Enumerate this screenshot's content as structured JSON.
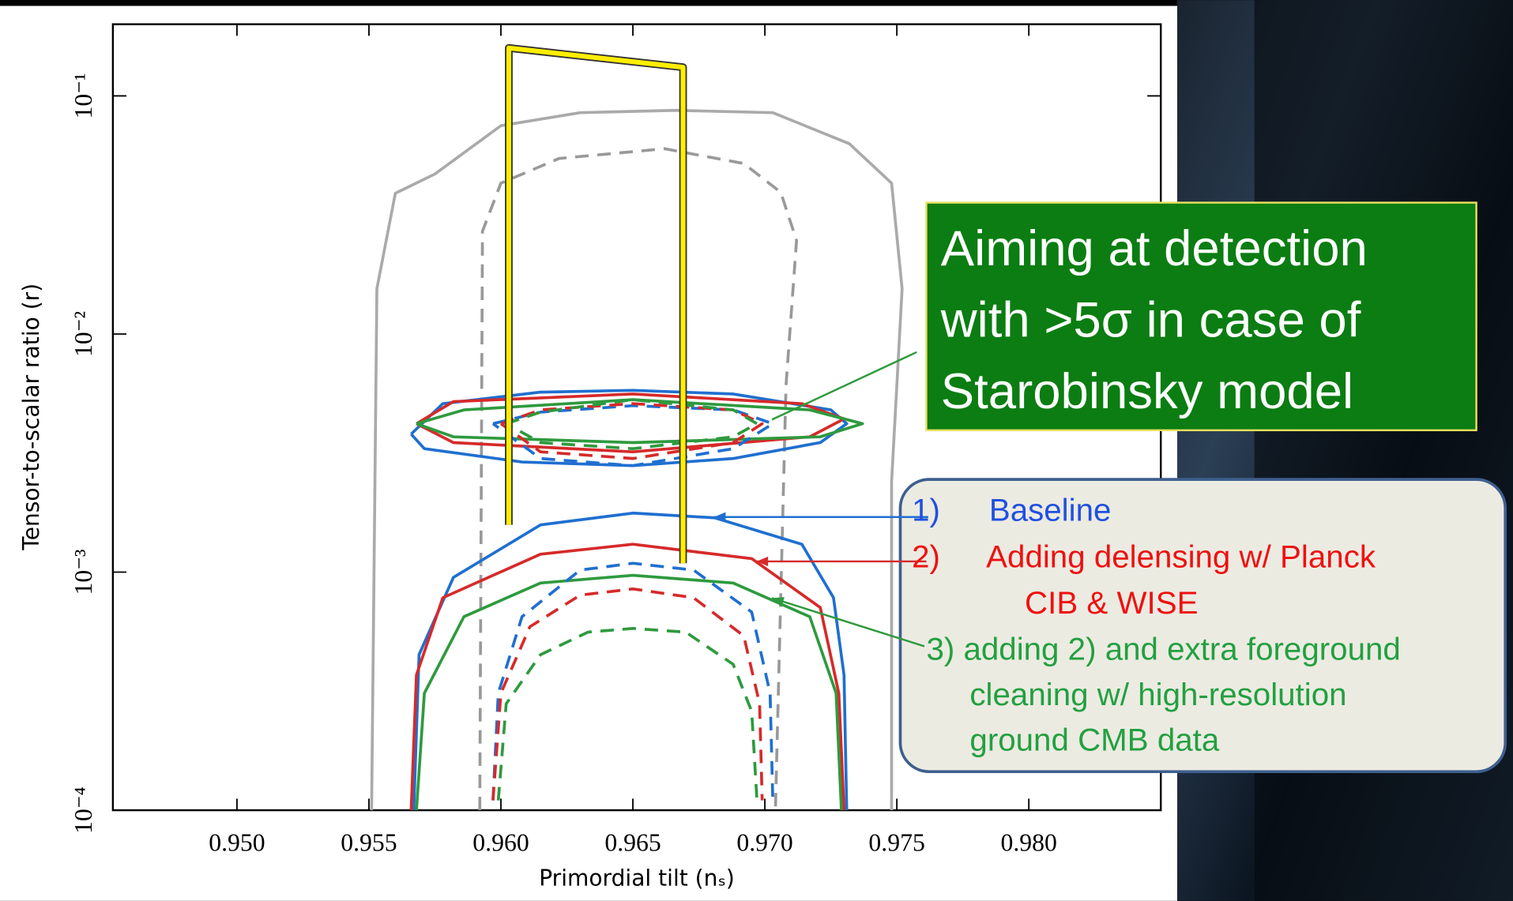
{
  "chart_data": {
    "type": "line",
    "xlabel": "Primordial tilt (nₛ)",
    "ylabel": "Tensor-to-scalar ratio (r)",
    "xlim": [
      0.9453,
      0.985
    ],
    "ylim": [
      0.0001,
      0.2
    ],
    "yscale": "log",
    "xticks": [
      {
        "value": 0.95,
        "label": "0.950"
      },
      {
        "value": 0.955,
        "label": "0.955"
      },
      {
        "value": 0.96,
        "label": "0.960"
      },
      {
        "value": 0.965,
        "label": "0.965"
      },
      {
        "value": 0.97,
        "label": "0.970"
      },
      {
        "value": 0.975,
        "label": "0.975"
      },
      {
        "value": 0.98,
        "label": "0.980"
      }
    ],
    "yticks": [
      {
        "value": 0.0001,
        "label": "10⁻⁴"
      },
      {
        "value": 0.001,
        "label": "10⁻³"
      },
      {
        "value": 0.01,
        "label": "10⁻²"
      },
      {
        "value": 0.1,
        "label": "10⁻¹"
      }
    ],
    "series": [
      {
        "color": "#aaaaaa",
        "dash": false,
        "x": [
          0.9551,
          0.9553,
          0.956,
          0.9575,
          0.96,
          0.963,
          0.9666,
          0.9703,
          0.9732,
          0.9748,
          0.9752,
          0.9748,
          0.9748
        ],
        "y": [
          0.0001,
          0.0155,
          0.039,
          0.047,
          0.075,
          0.085,
          0.087,
          0.085,
          0.063,
          0.043,
          0.0155,
          0.0024,
          0.0001
        ]
      },
      {
        "color": "#999999",
        "dash": true,
        "x": [
          0.9592,
          0.9593,
          0.96,
          0.9622,
          0.9662,
          0.9692,
          0.9706,
          0.9712,
          0.9708,
          0.9704
        ],
        "y": [
          0.0001,
          0.027,
          0.043,
          0.0546,
          0.06,
          0.052,
          0.0394,
          0.0247,
          0.0061,
          0.0001
        ]
      },
      {
        "color": "#1f6fd0",
        "dash": false,
        "x": [
          0.9566,
          0.9578,
          0.9615,
          0.965,
          0.9688,
          0.9725,
          0.9731,
          0.9721,
          0.9688,
          0.965,
          0.9608,
          0.9571,
          0.9566
        ],
        "y": [
          0.0038,
          0.0051,
          0.0057,
          0.0058,
          0.0056,
          0.0048,
          0.0042,
          0.0035,
          0.003,
          0.0028,
          0.0029,
          0.0033,
          0.0038
        ]
      },
      {
        "color": "#d62a2a",
        "dash": false,
        "x": [
          0.9568,
          0.9582,
          0.965,
          0.9714,
          0.973,
          0.9717,
          0.965,
          0.9582,
          0.9568
        ],
        "y": [
          0.0042,
          0.0052,
          0.0056,
          0.0051,
          0.0044,
          0.0037,
          0.0032,
          0.0035,
          0.0042
        ]
      },
      {
        "color": "#2e9a3e",
        "dash": false,
        "x": [
          0.9568,
          0.9586,
          0.965,
          0.9717,
          0.9737,
          0.9721,
          0.965,
          0.9582,
          0.9568
        ],
        "y": [
          0.0042,
          0.0048,
          0.0053,
          0.0048,
          0.0042,
          0.0037,
          0.0035,
          0.0037,
          0.0042
        ]
      },
      {
        "color": "#1f6fd0",
        "dash": true,
        "x": [
          0.9597,
          0.9615,
          0.965,
          0.9688,
          0.9703,
          0.9688,
          0.965,
          0.9615,
          0.9597
        ],
        "y": [
          0.0042,
          0.0047,
          0.005,
          0.0048,
          0.0042,
          0.0033,
          0.0028,
          0.003,
          0.0042
        ]
      },
      {
        "color": "#d62a2a",
        "dash": true,
        "x": [
          0.96,
          0.9615,
          0.965,
          0.9688,
          0.9699,
          0.9688,
          0.965,
          0.9615,
          0.96
        ],
        "y": [
          0.0042,
          0.0048,
          0.0051,
          0.0048,
          0.0042,
          0.0035,
          0.003,
          0.0032,
          0.0042
        ]
      },
      {
        "color": "#2e9a3e",
        "dash": true,
        "x": [
          0.9602,
          0.9615,
          0.965,
          0.9688,
          0.9697,
          0.9688,
          0.965,
          0.9615,
          0.9602
        ],
        "y": [
          0.0042,
          0.0047,
          0.0053,
          0.0048,
          0.0042,
          0.0037,
          0.0033,
          0.0035,
          0.0042
        ]
      },
      {
        "color": "#1f6fd0",
        "dash": false,
        "x": [
          0.9567,
          0.9569,
          0.9582,
          0.9615,
          0.965,
          0.9681,
          0.9714,
          0.9726,
          0.973,
          0.9731
        ],
        "y": [
          0.0001,
          0.00045,
          0.00095,
          0.00158,
          0.00177,
          0.00169,
          0.00131,
          0.00078,
          0.00037,
          0.0001
        ]
      },
      {
        "color": "#d62a2a",
        "dash": false,
        "x": [
          0.9566,
          0.9568,
          0.9578,
          0.9615,
          0.965,
          0.9695,
          0.9721,
          0.9728,
          0.973
        ],
        "y": [
          0.0001,
          0.00037,
          0.00078,
          0.00119,
          0.00131,
          0.00114,
          0.00071,
          0.00031,
          0.0001
        ]
      },
      {
        "color": "#2e9a3e",
        "dash": false,
        "x": [
          0.9568,
          0.9571,
          0.9586,
          0.9615,
          0.965,
          0.9688,
          0.9717,
          0.9727,
          0.9729
        ],
        "y": [
          0.0001,
          0.00031,
          0.00065,
          0.0009,
          0.00097,
          0.0009,
          0.00065,
          0.00031,
          0.0001
        ]
      },
      {
        "color": "#1f6fd0",
        "dash": true,
        "x": [
          0.9597,
          0.9599,
          0.9608,
          0.963,
          0.965,
          0.9673,
          0.9695,
          0.9702,
          0.9703
        ],
        "y": [
          0.00011,
          0.00031,
          0.00065,
          0.00102,
          0.00109,
          0.00102,
          0.00068,
          0.00031,
          0.00011
        ]
      },
      {
        "color": "#d62a2a",
        "dash": true,
        "x": [
          0.9597,
          0.96,
          0.9611,
          0.963,
          0.965,
          0.9673,
          0.9692,
          0.9698,
          0.9699
        ],
        "y": [
          0.00011,
          0.00031,
          0.00059,
          0.0008,
          0.00085,
          0.00078,
          0.00054,
          0.00028,
          0.00011
        ]
      },
      {
        "color": "#2e9a3e",
        "dash": true,
        "x": [
          0.9599,
          0.9602,
          0.9615,
          0.9633,
          0.965,
          0.967,
          0.9688,
          0.9695,
          0.9697
        ],
        "y": [
          0.00011,
          0.00028,
          0.00045,
          0.00056,
          0.00058,
          0.00056,
          0.00041,
          0.00026,
          0.00011
        ]
      },
      {
        "color": "#ffee00",
        "dash": false,
        "x": [
          0.9603,
          0.9603,
          0.9669,
          0.9669
        ],
        "y": [
          0.00158,
          0.159,
          0.132,
          0.00109
        ]
      }
    ],
    "annotations": {
      "callout": [
        "Aiming at detection",
        "with >5σ in case of",
        "Starobinsky model"
      ],
      "legend": [
        {
          "lines": [
            "1)",
            "Baseline"
          ]
        },
        {
          "lines": [
            "2)",
            "Adding delensing w/ Planck",
            "CIB & WISE"
          ]
        },
        {
          "lines": [
            "3) adding 2) and extra foreground",
            "cleaning w/ high-resolution",
            "ground CMB data"
          ]
        }
      ]
    }
  }
}
